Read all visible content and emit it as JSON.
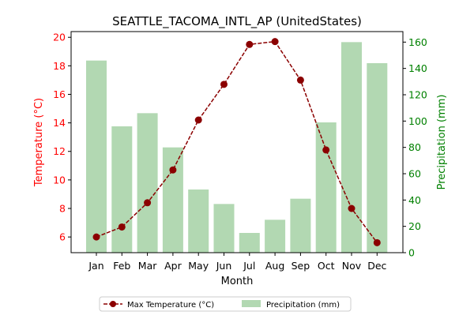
{
  "chart_data": {
    "type": "bar+line",
    "title": "SEATTLE_TACOMA_INTL_AP (UnitedStates)",
    "xlabel": "Month",
    "ylabel_left": "Temperature (°C)",
    "ylabel_right": "Precipitation (mm)",
    "categories": [
      "Jan",
      "Feb",
      "Mar",
      "Apr",
      "May",
      "Jun",
      "Jul",
      "Aug",
      "Sep",
      "Oct",
      "Nov",
      "Dec"
    ],
    "series": [
      {
        "name": "Max Temperature (°C)",
        "type": "line",
        "axis": "left",
        "values": [
          6.0,
          6.7,
          8.4,
          10.7,
          14.2,
          16.7,
          19.5,
          19.7,
          17.0,
          12.1,
          8.0,
          5.6
        ]
      },
      {
        "name": "Precipitation (mm)",
        "type": "bar",
        "axis": "right",
        "values": [
          146,
          96,
          106,
          80,
          48,
          37,
          15,
          25,
          41,
          99,
          160,
          144
        ]
      }
    ],
    "ylim_left": [
      4.9,
      20.4
    ],
    "ylim_right": [
      0,
      168
    ],
    "yticks_left": [
      6,
      8,
      10,
      12,
      14,
      16,
      18,
      20
    ],
    "yticks_right": [
      0,
      20,
      40,
      60,
      80,
      100,
      120,
      140,
      160
    ],
    "legend_position": "bottom-center",
    "grid": false
  },
  "colors": {
    "line": "#8b0000",
    "bar": "#b2d8b2",
    "left_axis": "#ff0000",
    "right_axis": "#008000",
    "text": "#000000"
  }
}
